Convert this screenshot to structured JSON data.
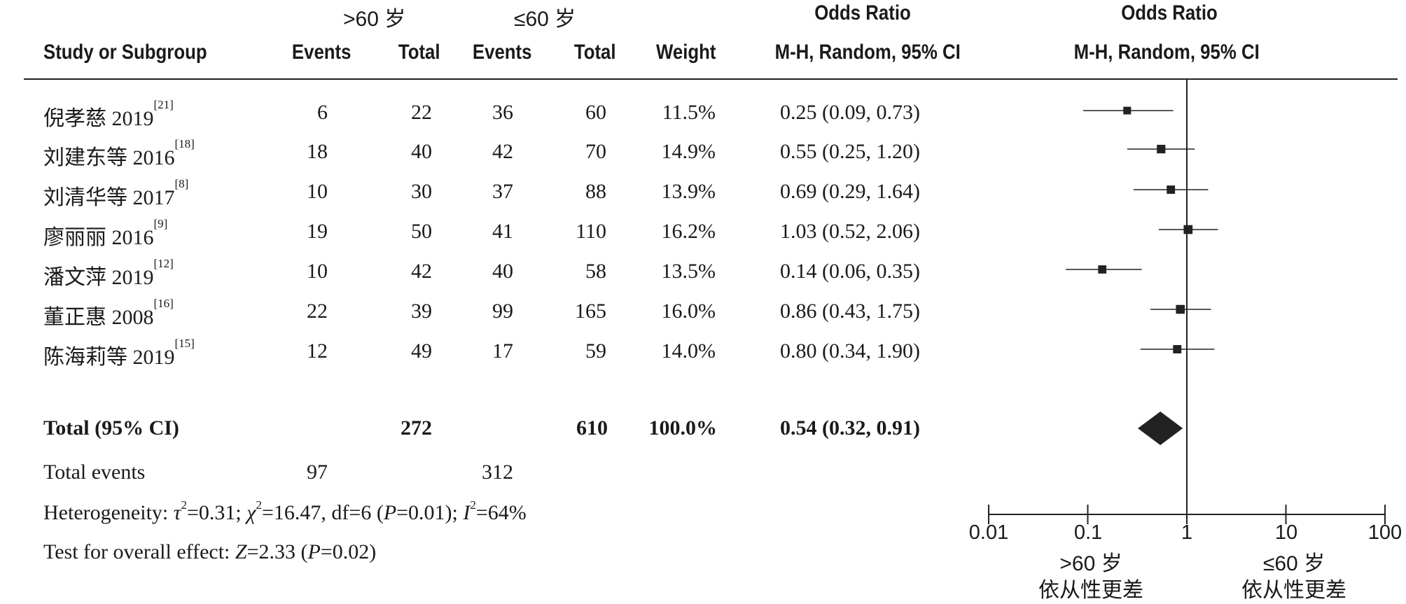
{
  "header": {
    "group_a": ">60 岁",
    "group_b": "≤60 岁",
    "col_study": "Study or Subgroup",
    "col_events_a": "Events",
    "col_total_a": "Total",
    "col_events_b": "Events",
    "col_total_b": "Total",
    "col_weight": "Weight",
    "col_or_title": "Odds Ratio",
    "col_or_method": "M-H, Random, 95% CI",
    "plot_title": "Odds Ratio",
    "plot_method": "M-H, Random, 95% CI"
  },
  "rows": [
    {
      "study": "倪孝慈 2019",
      "ref": "[21]",
      "events_a": "6",
      "total_a": "22",
      "events_b": "36",
      "total_b": "60",
      "weight": "11.5%",
      "or_text": "0.25 (0.09, 0.73)"
    },
    {
      "study": "刘建东等 2016",
      "ref": "[18]",
      "events_a": "18",
      "total_a": "40",
      "events_b": "42",
      "total_b": "70",
      "weight": "14.9%",
      "or_text": "0.55 (0.25, 1.20)"
    },
    {
      "study": "刘清华等 2017",
      "ref": "[8]",
      "events_a": "10",
      "total_a": "30",
      "events_b": "37",
      "total_b": "88",
      "weight": "13.9%",
      "or_text": "0.69 (0.29, 1.64)"
    },
    {
      "study": "廖丽丽 2016",
      "ref": "[9]",
      "events_a": "19",
      "total_a": "50",
      "events_b": "41",
      "total_b": "110",
      "weight": "16.2%",
      "or_text": "1.03 (0.52, 2.06)"
    },
    {
      "study": "潘文萍 2019",
      "ref": "[12]",
      "events_a": "10",
      "total_a": "42",
      "events_b": "40",
      "total_b": "58",
      "weight": "13.5%",
      "or_text": "0.14 (0.06, 0.35)"
    },
    {
      "study": "董正惠 2008",
      "ref": "[16]",
      "events_a": "22",
      "total_a": "39",
      "events_b": "99",
      "total_b": "165",
      "weight": "16.0%",
      "or_text": "0.86 (0.43, 1.75)"
    },
    {
      "study": "陈海莉等 2019",
      "ref": "[15]",
      "events_a": "12",
      "total_a": "49",
      "events_b": "17",
      "total_b": "59",
      "weight": "14.0%",
      "or_text": "0.80 (0.34, 1.90)"
    }
  ],
  "total": {
    "label": "Total (95% CI)",
    "total_a": "272",
    "total_b": "610",
    "weight": "100.0%",
    "or_text": "0.54 (0.32, 0.91)"
  },
  "total_events": {
    "label": "Total events",
    "events_a": "97",
    "events_b": "312"
  },
  "heterogeneity": {
    "prefix": "Heterogeneity: ",
    "tau_sym": "τ",
    "tau_rest": "=0.31; ",
    "chi_sym": "χ",
    "chi_rest": "=16.47, df=6 (",
    "p_sym": "P",
    "p_rest": "=0.01); ",
    "i_sym": "I",
    "i_rest": "=64%"
  },
  "overall_effect": {
    "prefix": "Test for overall effect: ",
    "z_sym": "Z",
    "z_rest": "=2.33 (",
    "p_sym": "P",
    "p_rest": "=0.02)"
  },
  "axis": {
    "ticks": [
      "0.01",
      "0.1",
      "1",
      "10",
      "100"
    ],
    "favours_left_1": ">60 岁",
    "favours_left_2": "依从性更差",
    "favours_right_1": "≤60 岁",
    "favours_right_2": "依从性更差"
  },
  "chart_data": {
    "type": "scatter",
    "subtype": "forest-plot",
    "title": "Odds Ratio",
    "subtitle": "M-H, Random, 95% CI",
    "x_scale": "log",
    "xlim": [
      0.01,
      100
    ],
    "x_ticks": [
      0.01,
      0.1,
      1,
      10,
      100
    ],
    "reference_line": 1,
    "studies": [
      {
        "name": "倪孝慈 2019",
        "or": 0.25,
        "lo": 0.09,
        "hi": 0.73,
        "weight": 11.5
      },
      {
        "name": "刘建东等 2016",
        "or": 0.55,
        "lo": 0.25,
        "hi": 1.2,
        "weight": 14.9
      },
      {
        "name": "刘清华等 2017",
        "or": 0.69,
        "lo": 0.29,
        "hi": 1.64,
        "weight": 13.9
      },
      {
        "name": "廖丽丽 2016",
        "or": 1.03,
        "lo": 0.52,
        "hi": 2.06,
        "weight": 16.2
      },
      {
        "name": "潘文萍 2019",
        "or": 0.14,
        "lo": 0.06,
        "hi": 0.35,
        "weight": 13.5
      },
      {
        "name": "董正惠 2008",
        "or": 0.86,
        "lo": 0.43,
        "hi": 1.75,
        "weight": 16.0
      },
      {
        "name": "陈海莉等 2019",
        "or": 0.8,
        "lo": 0.34,
        "hi": 1.9,
        "weight": 14.0
      }
    ],
    "pooled": {
      "name": "Total (95% CI)",
      "or": 0.54,
      "lo": 0.32,
      "hi": 0.91
    },
    "colors": {
      "marks": "#222222"
    }
  }
}
